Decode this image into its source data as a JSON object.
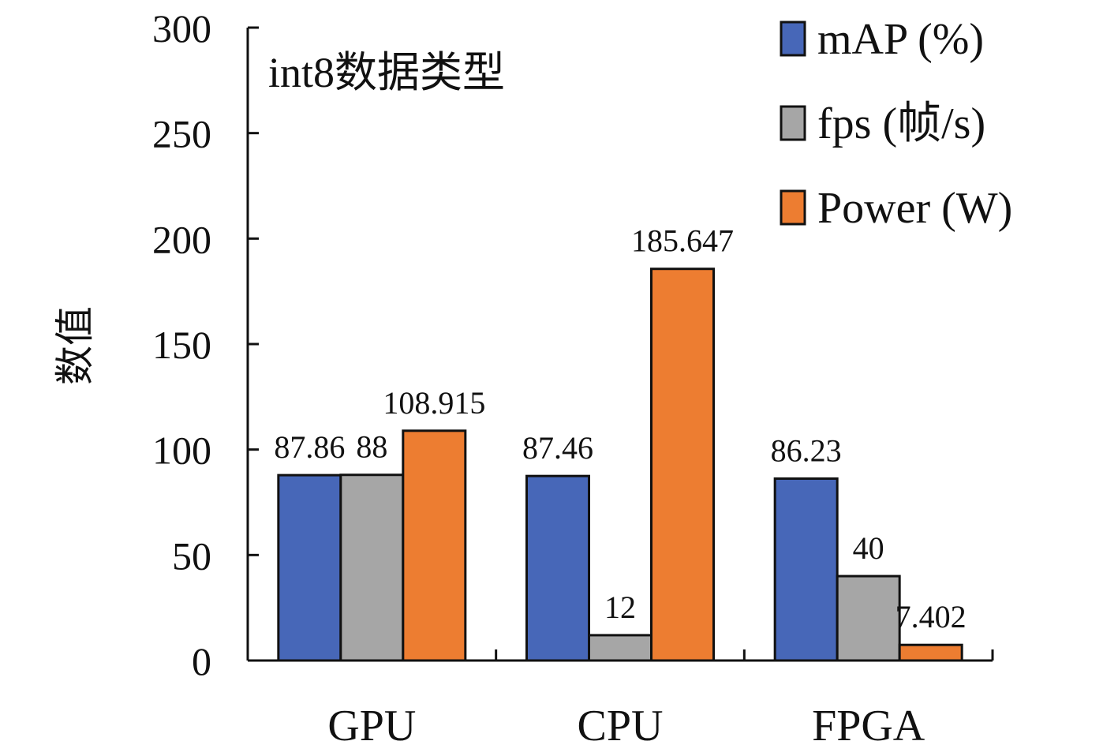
{
  "chart_data": {
    "type": "bar",
    "title": "",
    "annotation": "int8数据类型",
    "xlabel": "",
    "ylabel": "数值",
    "ylim": [
      0,
      300
    ],
    "yticks": [
      0,
      50,
      100,
      150,
      200,
      250,
      300
    ],
    "grid": false,
    "legend_position": "top-right",
    "categories": [
      "GPU",
      "CPU",
      "FPGA"
    ],
    "series": [
      {
        "name": "mAP (%)",
        "color": "#4767b8",
        "values": [
          87.86,
          87.46,
          86.23
        ],
        "labels": [
          "87.86",
          "87.46",
          "86.23"
        ]
      },
      {
        "name": "fps (帧/s)",
        "color": "#a6a6a6",
        "values": [
          88,
          12,
          40
        ],
        "labels": [
          "88",
          "12",
          "40"
        ]
      },
      {
        "name": "Power (W)",
        "color": "#ed7d31",
        "values": [
          108.915,
          185.647,
          7.402
        ],
        "labels": [
          "108.915",
          "185.647",
          "7.402"
        ]
      }
    ]
  }
}
